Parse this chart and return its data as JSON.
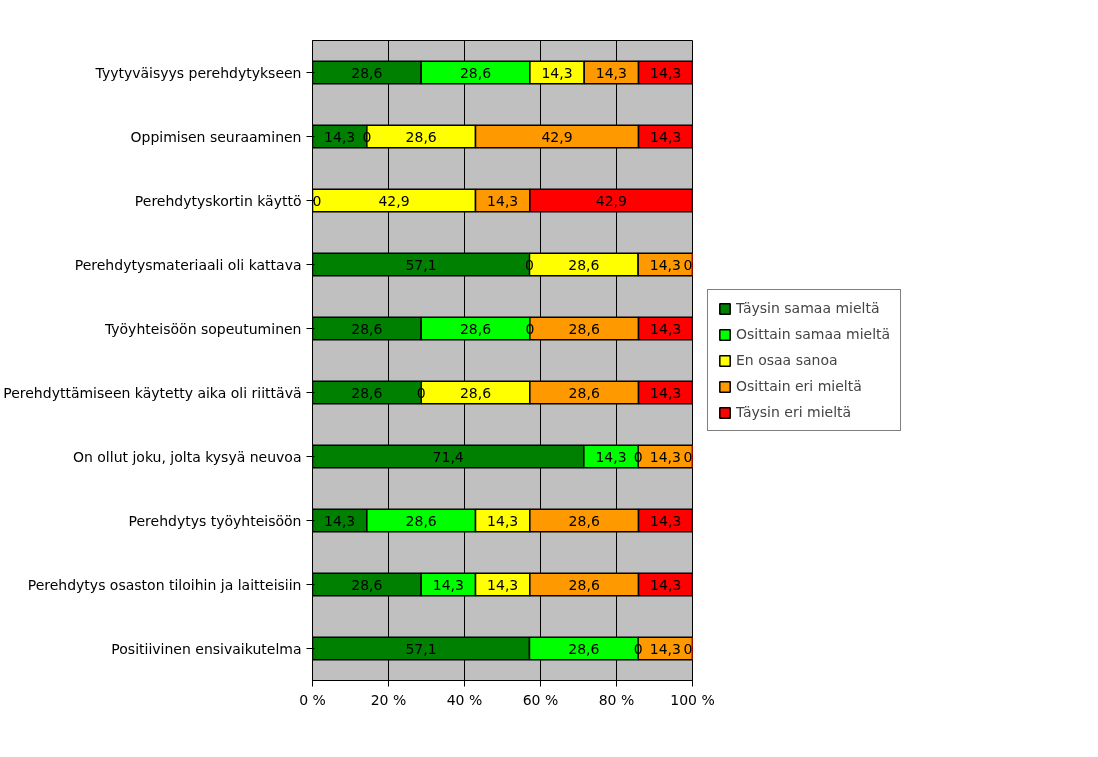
{
  "chart_data": {
    "type": "bar",
    "orientation": "horizontal",
    "stacked": true,
    "categories": [
      "Tyytyväisyys perehdytykseen",
      "Oppimisen seuraaminen",
      "Perehdytyskortin käyttö",
      "Perehdytysmateriaali oli kattava",
      "Työyhteisöön sopeutuminen",
      "Perehdyttämiseen käytetty aika oli riittävä",
      "On ollut joku, jolta kysyä neuvoa",
      "Perehdytys työyhteisöön",
      "Perehdytys osaston tiloihin ja laitteisiin",
      "Positiivinen ensivaikutelma"
    ],
    "series": [
      {
        "name": "Täysin samaa mieltä",
        "color": "#008000",
        "values": [
          28.6,
          14.3,
          0,
          57.1,
          28.6,
          28.6,
          71.4,
          14.3,
          28.6,
          57.1
        ],
        "value_labels": [
          "28,6",
          "14,3",
          "0",
          "57,1",
          "28,6",
          "28,6",
          "71,4",
          "14,3",
          "28,6",
          "57,1"
        ]
      },
      {
        "name": "Osittain samaa mieltä",
        "color": "#00ff00",
        "values": [
          28.6,
          0,
          0,
          0,
          28.6,
          0,
          14.3,
          28.6,
          14.3,
          28.6
        ],
        "value_labels": [
          "28,6",
          "0",
          null,
          "0",
          "28,6",
          "0",
          "14,3",
          "28,6",
          "14,3",
          "28,6"
        ]
      },
      {
        "name": "En osaa sanoa",
        "color": "#ffff00",
        "values": [
          14.3,
          28.6,
          42.9,
          28.6,
          0,
          28.6,
          0,
          14.3,
          14.3,
          0
        ],
        "value_labels": [
          "14,3",
          "28,6",
          "42,9",
          "28,6",
          "0",
          "28,6",
          "0",
          "14,3",
          "14,3",
          "0"
        ]
      },
      {
        "name": "Osittain eri mieltä",
        "color": "#ff9900",
        "values": [
          14.3,
          42.9,
          14.3,
          14.3,
          28.6,
          28.6,
          14.3,
          28.6,
          28.6,
          14.3
        ],
        "value_labels": [
          "14,3",
          "42,9",
          "14,3",
          "14,3",
          "28,6",
          "28,6",
          "14,3",
          "28,6",
          "28,6",
          "14,3"
        ]
      },
      {
        "name": "Täysin eri mieltä",
        "color": "#ff0000",
        "values": [
          14.3,
          14.3,
          42.9,
          0,
          14.3,
          14.3,
          0,
          14.3,
          14.3,
          0
        ],
        "value_labels": [
          "14,3",
          "14,3",
          "42,9",
          "0",
          "14,3",
          "14,3",
          "0",
          "14,3",
          "14,3",
          "0"
        ]
      }
    ],
    "xlim": [
      0,
      100
    ],
    "xticks": [
      {
        "value": 0,
        "label": "0 %"
      },
      {
        "value": 20,
        "label": "20 %"
      },
      {
        "value": 40,
        "label": "40 %"
      },
      {
        "value": 60,
        "label": "60 %"
      },
      {
        "value": 80,
        "label": "80 %"
      },
      {
        "value": 100,
        "label": "100 %"
      }
    ],
    "grid": "x",
    "legend": "right"
  }
}
